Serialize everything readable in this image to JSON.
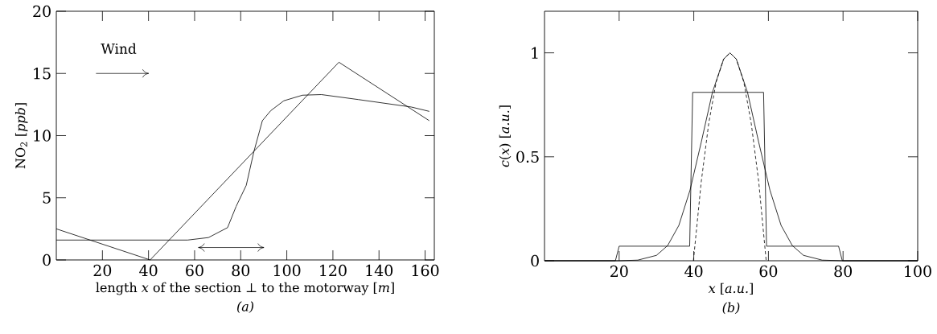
{
  "chart_data": [
    {
      "type": "line",
      "xlabel": "length *x* of the section ⊥ to the motorway [*m*]",
      "ylabel": "NO$_{2}$ [*ppb*]",
      "annotations": [
        "Wind",
        "(a)"
      ],
      "xlim": [
        0,
        164
      ],
      "ylim": [
        0,
        20
      ],
      "xticks": [
        20,
        40,
        60,
        80,
        100,
        120,
        140,
        160
      ],
      "yticks": [
        0,
        5,
        10,
        15,
        20
      ],
      "series": [
        {
          "color": "#000000",
          "x": [
            0,
            40.7,
            122.6,
            161.8
          ],
          "values": [
            2.5,
            0,
            15.9,
            11.2
          ]
        },
        {
          "color": "#000000",
          "x": [
            0,
            57,
            66,
            74.3,
            78,
            82.4,
            85.7,
            89.4,
            93,
            98.7,
            106.8,
            115,
            131,
            154,
            161.8
          ],
          "values": [
            1.6,
            1.6,
            1.8,
            2.6,
            4.3,
            6.0,
            8.7,
            11.2,
            12.0,
            12.8,
            13.25,
            13.3,
            12.9,
            12.3,
            11.95
          ]
        }
      ]
    },
    {
      "type": "line",
      "xlabel": "*x* [*a.u.*]",
      "ylabel": "*c*(*x*) [*a.u.*]",
      "annotations": [
        "(b)"
      ],
      "xlim": [
        0,
        100
      ],
      "ylim": [
        0,
        1.2
      ],
      "xticks": [
        20,
        40,
        60,
        80,
        100
      ],
      "yticks": [
        0,
        0.5,
        1
      ],
      "series": [
        {
          "color": "#000000",
          "line_style": "solid",
          "x": [
            0,
            19,
            20,
            38.9,
            39.7,
            58.7,
            59.5,
            78.8,
            79.8,
            100
          ],
          "values": [
            0,
            0,
            0.07,
            0.07,
            0.81,
            0.81,
            0.07,
            0.07,
            0,
            0
          ]
        },
        {
          "color": "#000000",
          "line_style": "solid",
          "x": [
            0,
            20,
            25,
            30,
            33,
            36,
            39,
            42,
            45,
            48,
            49.7,
            51.4,
            54.4,
            57.4,
            60.4,
            63.4,
            66.4,
            69.4,
            74.4,
            80,
            100
          ],
          "values": [
            0,
            0,
            0.003,
            0.026,
            0.073,
            0.17,
            0.34,
            0.57,
            0.81,
            0.97,
            1,
            0.97,
            0.81,
            0.57,
            0.34,
            0.17,
            0.073,
            0.026,
            0.003,
            0,
            0
          ]
        },
        {
          "color": "#000000",
          "line_style": "dashed",
          "x": [
            39.9,
            42,
            44,
            46,
            48,
            49.7,
            51.4,
            53.4,
            55.4,
            57.4,
            59.4
          ],
          "values": [
            0,
            0.38,
            0.66,
            0.86,
            0.97,
            1,
            0.97,
            0.86,
            0.66,
            0.38,
            0
          ]
        }
      ]
    }
  ]
}
